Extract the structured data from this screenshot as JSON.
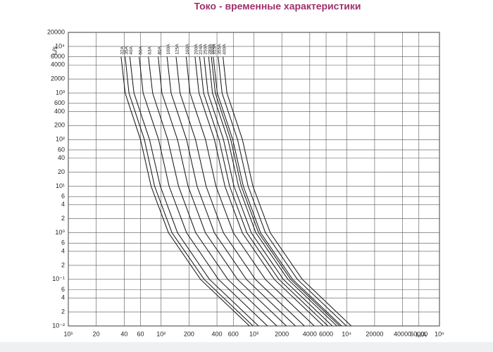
{
  "chart_data": {
    "type": "line",
    "title": "Токо - временные характеристики",
    "x_label": "Iₚ/A",
    "y_label": "tᵥ/s",
    "log_x": true,
    "log_y": true,
    "grid": true,
    "color": "#111111",
    "xlim": [
      10,
      100000
    ],
    "ylim": [
      0.01,
      20000
    ],
    "xticks": [
      {
        "value": 10,
        "label": "10¹"
      },
      20,
      40,
      60,
      {
        "value": 100,
        "label": "10²"
      },
      200,
      400,
      600,
      {
        "value": 1000,
        "label": "10³"
      },
      2000,
      4000,
      6000,
      {
        "value": 10000,
        "label": "10⁴"
      },
      20000,
      40000,
      60000,
      {
        "value": 100000,
        "label": "10⁵"
      }
    ],
    "yticks": [
      {
        "value": 0.01,
        "label": "10⁻²"
      },
      {
        "value": 0.02,
        "label": "2"
      },
      {
        "value": 0.04,
        "label": "4"
      },
      {
        "value": 0.06,
        "label": "6"
      },
      {
        "value": 0.1,
        "label": "10⁻¹"
      },
      {
        "value": 0.2,
        "label": "2"
      },
      {
        "value": 0.4,
        "label": "4"
      },
      {
        "value": 0.6,
        "label": "6"
      },
      {
        "value": 1,
        "label": "10⁰"
      },
      2,
      4,
      6,
      {
        "value": 10,
        "label": "10¹"
      },
      20,
      40,
      60,
      {
        "value": 100,
        "label": "10²"
      },
      200,
      400,
      600,
      {
        "value": 1000,
        "label": "10³"
      },
      2000,
      4000,
      6000,
      {
        "value": 10000,
        "label": "10⁴"
      },
      20000
    ],
    "series": [
      {
        "name": "32A",
        "x": [
          37,
          41,
          60,
          78,
          120,
          266,
          896
        ],
        "values": [
          6000,
          1000,
          100,
          10,
          1,
          0.1,
          0.01
        ]
      },
      {
        "name": "35A",
        "x": [
          41,
          45,
          66,
          85,
          131,
          291,
          980
        ],
        "values": [
          6000,
          1000,
          100,
          10,
          1,
          0.1,
          0.01
        ]
      },
      {
        "name": "40A",
        "x": [
          46,
          51,
          75,
          98,
          150,
          332,
          1120
        ],
        "values": [
          6000,
          1000,
          100,
          10,
          1,
          0.1,
          0.01
        ]
      },
      {
        "name": "50A",
        "x": [
          58,
          64,
          94,
          122,
          188,
          415,
          1400
        ],
        "values": [
          6000,
          1000,
          100,
          10,
          1,
          0.1,
          0.01
        ]
      },
      {
        "name": "63A",
        "x": [
          73,
          81,
          118,
          154,
          236,
          523,
          1764
        ],
        "values": [
          6000,
          1000,
          100,
          10,
          1,
          0.1,
          0.01
        ]
      },
      {
        "name": "80A",
        "x": [
          93,
          102,
          150,
          195,
          300,
          664,
          2240
        ],
        "values": [
          6000,
          1000,
          100,
          10,
          1,
          0.1,
          0.01
        ]
      },
      {
        "name": "100A",
        "x": [
          116,
          128,
          188,
          244,
          375,
          830,
          2800
        ],
        "values": [
          6000,
          1000,
          100,
          10,
          1,
          0.1,
          0.01
        ]
      },
      {
        "name": "125A",
        "x": [
          145,
          160,
          235,
          305,
          469,
          1038,
          3500
        ],
        "values": [
          6000,
          1000,
          100,
          10,
          1,
          0.1,
          0.01
        ]
      },
      {
        "name": "160A",
        "x": [
          186,
          205,
          301,
          390,
          600,
          1328,
          4480
        ],
        "values": [
          6000,
          1000,
          100,
          10,
          1,
          0.1,
          0.01
        ]
      },
      {
        "name": "200A",
        "x": [
          232,
          256,
          376,
          488,
          750,
          1660,
          5600
        ],
        "values": [
          6000,
          1000,
          100,
          10,
          1,
          0.1,
          0.01
        ]
      },
      {
        "name": "224A",
        "x": [
          260,
          287,
          421,
          547,
          840,
          1859,
          6272
        ],
        "values": [
          6000,
          1000,
          100,
          10,
          1,
          0.1,
          0.01
        ]
      },
      {
        "name": "250A",
        "x": [
          290,
          320,
          470,
          610,
          938,
          2075,
          7000
        ],
        "values": [
          6000,
          1000,
          100,
          10,
          1,
          0.1,
          0.01
        ]
      },
      {
        "name": "280A",
        "x": [
          325,
          358,
          526,
          683,
          1050,
          2324,
          7840
        ],
        "values": [
          6000,
          1000,
          100,
          10,
          1,
          0.1,
          0.01
        ]
      },
      {
        "name": "300A",
        "x": [
          348,
          384,
          564,
          732,
          1125,
          2490,
          8400
        ],
        "values": [
          6000,
          1000,
          100,
          10,
          1,
          0.1,
          0.01
        ]
      },
      {
        "name": "315A",
        "x": [
          365,
          403,
          592,
          769,
          1181,
          2615,
          8820
        ],
        "values": [
          6000,
          1000,
          100,
          10,
          1,
          0.1,
          0.01
        ]
      },
      {
        "name": "355A",
        "x": [
          412,
          454,
          667,
          866,
          1331,
          2947,
          9940
        ],
        "values": [
          6000,
          1000,
          100,
          10,
          1,
          0.1,
          0.01
        ]
      },
      {
        "name": "400A",
        "x": [
          464,
          512,
          752,
          976,
          1500,
          3320,
          11200
        ],
        "values": [
          6000,
          1000,
          100,
          10,
          1,
          0.1,
          0.01
        ]
      }
    ]
  }
}
